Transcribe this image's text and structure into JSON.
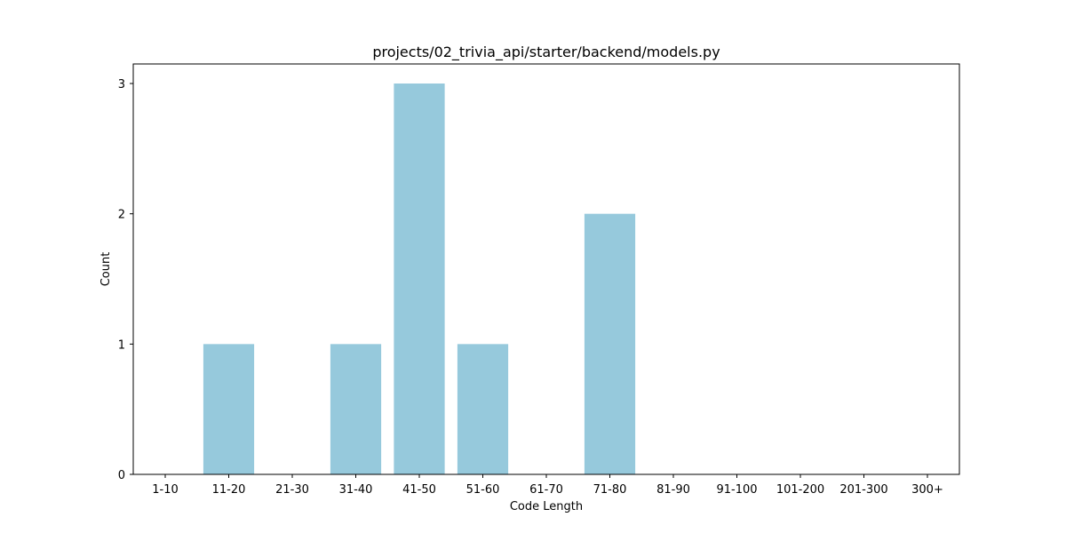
{
  "chart_data": {
    "type": "bar",
    "title": "projects/02_trivia_api/starter/backend/models.py",
    "xlabel": "Code Length",
    "ylabel": "Count",
    "categories": [
      "1-10",
      "11-20",
      "21-30",
      "31-40",
      "41-50",
      "51-60",
      "61-70",
      "71-80",
      "81-90",
      "91-100",
      "101-200",
      "201-300",
      "300+"
    ],
    "values": [
      0,
      1,
      0,
      1,
      3,
      1,
      0,
      2,
      0,
      0,
      0,
      0,
      0
    ],
    "ylim": [
      0,
      3.15
    ],
    "yticks": [
      0,
      1,
      2,
      3
    ],
    "grid": false,
    "legend": "none",
    "bar_color": "#96c9dc"
  }
}
